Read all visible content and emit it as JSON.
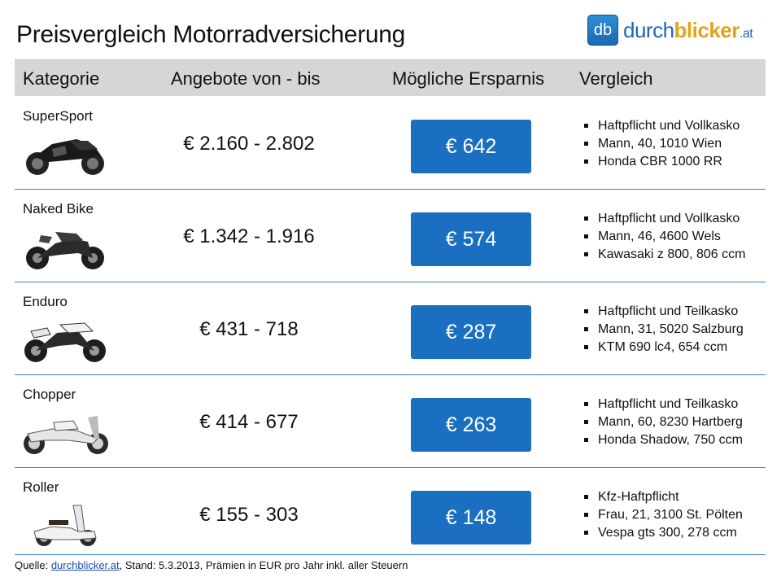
{
  "title": "Preisvergleich Motorradversicherung",
  "logo": {
    "badge": "db",
    "word_main": "durch",
    "word_accent": "blicker",
    "word_tld": ".at"
  },
  "header": {
    "kategorie": "Kategorie",
    "angebote": "Angebote von - bis",
    "ersparnis": "Mögliche Ersparnis",
    "vergleich": "Vergleich"
  },
  "rows": [
    {
      "category": "SuperSport",
      "range": "€ 2.160 - 2.802",
      "saving": "€ 642",
      "facts": [
        "Haftpflicht und Vollkasko",
        "Mann, 40, 1010 Wien",
        "Honda CBR 1000 RR"
      ],
      "bike_icon": "sport-bike-icon"
    },
    {
      "category": "Naked Bike",
      "range": "€ 1.342 - 1.916",
      "saving": "€ 574",
      "facts": [
        "Haftpflicht und Vollkasko",
        "Mann, 46, 4600 Wels",
        "Kawasaki z 800, 806 ccm"
      ],
      "bike_icon": "naked-bike-icon"
    },
    {
      "category": "Enduro",
      "range": "€ 431 - 718",
      "saving": "€ 287",
      "facts": [
        "Haftpflicht und Teilkasko",
        "Mann, 31, 5020 Salzburg",
        "KTM 690 lc4, 654 ccm"
      ],
      "bike_icon": "enduro-bike-icon"
    },
    {
      "category": "Chopper",
      "range": "€ 414 - 677",
      "saving": "€ 263",
      "facts": [
        "Haftpflicht und Teilkasko",
        "Mann, 60, 8230 Hartberg",
        "Honda Shadow, 750 ccm"
      ],
      "bike_icon": "chopper-bike-icon"
    },
    {
      "category": "Roller",
      "range": "€ 155 - 303",
      "saving": "€ 148",
      "facts": [
        "Kfz-Haftpflicht",
        "Frau, 21, 3100 St. Pölten",
        "Vespa gts 300, 278 ccm"
      ],
      "bike_icon": "scooter-icon"
    }
  ],
  "footer": {
    "prefix": "Quelle: ",
    "link": "durchblicker.at",
    "suffix": ", Stand: 5.3.2013, Prämien in EUR pro Jahr inkl. aller Steuern"
  },
  "colors": {
    "accent": "#1a6fc0",
    "header_bg": "#d6d6d6",
    "divider": "#3a82c4",
    "logo_accent": "#e3a31a"
  }
}
